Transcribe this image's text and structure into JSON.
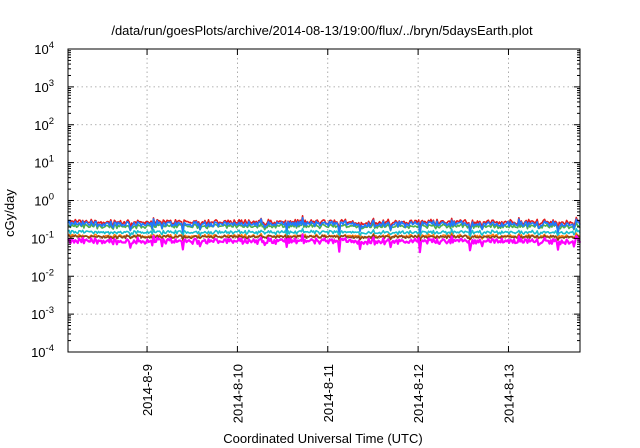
{
  "chart_data": {
    "type": "line",
    "title": "/data/run/goesPlots/archive/2014-08-13/19:00/flux/../bryn/5daysEarth.plot",
    "xlabel": "Coordinated Universal Time (UTC)",
    "ylabel": "cGy/day",
    "yscale": "log",
    "ylim": [
      0.0001,
      10000
    ],
    "xlim": [
      "2014-08-08 03:00",
      "2014-08-13 19:00"
    ],
    "y_ticks": [
      {
        "value": 0.0001,
        "base": "10",
        "exp": "-4"
      },
      {
        "value": 0.001,
        "base": "10",
        "exp": "-3"
      },
      {
        "value": 0.01,
        "base": "10",
        "exp": "-2"
      },
      {
        "value": 0.1,
        "base": "10",
        "exp": "-1"
      },
      {
        "value": 1,
        "base": "10",
        "exp": "0"
      },
      {
        "value": 10,
        "base": "10",
        "exp": "1"
      },
      {
        "value": 100,
        "base": "10",
        "exp": "2"
      },
      {
        "value": 1000,
        "base": "10",
        "exp": "3"
      },
      {
        "value": 10000,
        "base": "10",
        "exp": "4"
      }
    ],
    "x_ticks": [
      {
        "label": "2014-8-9",
        "date": "2014-08-09 00:00"
      },
      {
        "label": "2014-8-10",
        "date": "2014-08-10 00:00"
      },
      {
        "label": "2014-8-11",
        "date": "2014-08-11 00:00"
      },
      {
        "label": "2014-8-12",
        "date": "2014-08-12 00:00"
      },
      {
        "label": "2014-8-13",
        "date": "2014-08-13 00:00"
      }
    ],
    "grid": true,
    "legend": "none",
    "series": [
      {
        "color": "#e41a1c",
        "level": 0.27,
        "spread": 0.17
      },
      {
        "color": "#4daf4a",
        "level": 0.21,
        "spread": 0.14
      },
      {
        "color": "#1f78ff",
        "level": 0.24,
        "spread": 0.2
      },
      {
        "color": "#17becf",
        "level": 0.145,
        "spread": 0.1
      },
      {
        "color": "#ff7f0e",
        "level": 0.115,
        "spread": 0.08
      },
      {
        "color": "#8b4513",
        "level": 0.11,
        "spread": 0.07
      },
      {
        "color": "#ff00ff",
        "level": 0.085,
        "spread": 0.2
      }
    ]
  }
}
